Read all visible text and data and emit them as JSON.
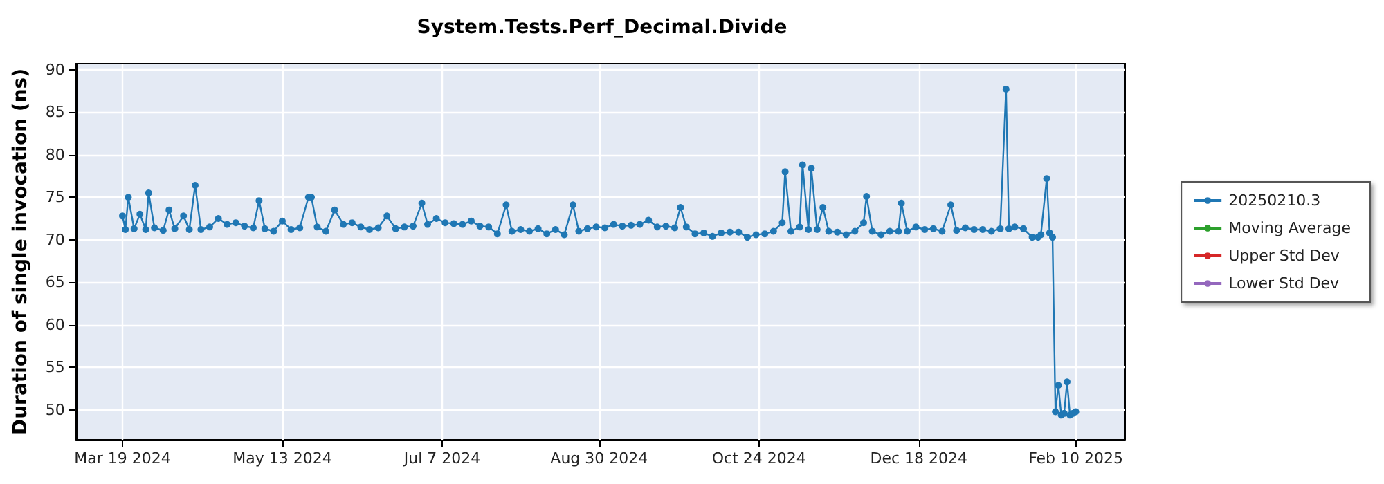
{
  "chart_data": {
    "type": "line",
    "title": "System.Tests.Perf_Decimal.Divide",
    "ylabel": "Duration of single invocation (ns)",
    "x": [
      "2024-03-19",
      "2024-03-20",
      "2024-03-21",
      "2024-03-23",
      "2024-03-25",
      "2024-03-27",
      "2024-03-28",
      "2024-03-30",
      "2024-04-02",
      "2024-04-04",
      "2024-04-06",
      "2024-04-09",
      "2024-04-11",
      "2024-04-13",
      "2024-04-15",
      "2024-04-18",
      "2024-04-21",
      "2024-04-24",
      "2024-04-27",
      "2024-04-30",
      "2024-05-03",
      "2024-05-05",
      "2024-05-07",
      "2024-05-10",
      "2024-05-13",
      "2024-05-16",
      "2024-05-19",
      "2024-05-22",
      "2024-05-23",
      "2024-05-25",
      "2024-05-28",
      "2024-05-31",
      "2024-06-03",
      "2024-06-06",
      "2024-06-09",
      "2024-06-12",
      "2024-06-15",
      "2024-06-18",
      "2024-06-21",
      "2024-06-24",
      "2024-06-27",
      "2024-06-30",
      "2024-07-02",
      "2024-07-05",
      "2024-07-08",
      "2024-07-11",
      "2024-07-14",
      "2024-07-17",
      "2024-07-20",
      "2024-07-23",
      "2024-07-26",
      "2024-07-29",
      "2024-07-31",
      "2024-08-03",
      "2024-08-06",
      "2024-08-09",
      "2024-08-12",
      "2024-08-15",
      "2024-08-18",
      "2024-08-21",
      "2024-08-23",
      "2024-08-26",
      "2024-08-29",
      "2024-09-01",
      "2024-09-04",
      "2024-09-07",
      "2024-09-10",
      "2024-09-13",
      "2024-09-16",
      "2024-09-19",
      "2024-09-22",
      "2024-09-25",
      "2024-09-27",
      "2024-09-29",
      "2024-10-02",
      "2024-10-05",
      "2024-10-08",
      "2024-10-11",
      "2024-10-14",
      "2024-10-17",
      "2024-10-20",
      "2024-10-23",
      "2024-10-26",
      "2024-10-29",
      "2024-11-01",
      "2024-11-02",
      "2024-11-04",
      "2024-11-07",
      "2024-11-08",
      "2024-11-10",
      "2024-11-11",
      "2024-11-13",
      "2024-11-15",
      "2024-11-17",
      "2024-11-20",
      "2024-11-23",
      "2024-11-26",
      "2024-11-29",
      "2024-11-30",
      "2024-12-02",
      "2024-12-05",
      "2024-12-08",
      "2024-12-11",
      "2024-12-12",
      "2024-12-14",
      "2024-12-17",
      "2024-12-20",
      "2024-12-23",
      "2024-12-26",
      "2024-12-29",
      "2024-12-31",
      "2025-01-03",
      "2025-01-06",
      "2025-01-09",
      "2025-01-12",
      "2025-01-15",
      "2025-01-17",
      "2025-01-18",
      "2025-01-20",
      "2025-01-23",
      "2025-01-26",
      "2025-01-28",
      "2025-01-29",
      "2025-01-31",
      "2025-02-01",
      "2025-02-02",
      "2025-02-03",
      "2025-02-04",
      "2025-02-05",
      "2025-02-06",
      "2025-02-07",
      "2025-02-08",
      "2025-02-09",
      "2025-02-10"
    ],
    "series": [
      {
        "name": "20250210.3",
        "color": "#1f77b4",
        "values": [
          72.8,
          71.2,
          75.0,
          71.3,
          73.0,
          71.2,
          75.5,
          71.4,
          71.1,
          73.5,
          71.3,
          72.8,
          71.2,
          76.4,
          71.2,
          71.5,
          72.5,
          71.8,
          72.0,
          71.6,
          71.4,
          74.6,
          71.3,
          71.0,
          72.2,
          71.2,
          71.4,
          75.0,
          75.0,
          71.5,
          71.0,
          73.5,
          71.8,
          72.0,
          71.5,
          71.2,
          71.4,
          72.8,
          71.3,
          71.5,
          71.6,
          74.3,
          71.8,
          72.5,
          72.0,
          71.9,
          71.8,
          72.2,
          71.6,
          71.5,
          70.7,
          74.1,
          71.0,
          71.2,
          71.0,
          71.3,
          70.7,
          71.2,
          70.6,
          74.1,
          71.0,
          71.3,
          71.5,
          71.4,
          71.8,
          71.6,
          71.7,
          71.8,
          72.3,
          71.5,
          71.6,
          71.4,
          73.8,
          71.5,
          70.7,
          70.8,
          70.4,
          70.8,
          70.9,
          70.9,
          70.3,
          70.6,
          70.7,
          71.0,
          72.0,
          78.0,
          71.0,
          71.5,
          78.8,
          71.2,
          78.4,
          71.2,
          73.8,
          71.0,
          70.9,
          70.6,
          71.0,
          72.0,
          75.1,
          71.0,
          70.6,
          71.0,
          71.0,
          74.3,
          71.0,
          71.5,
          71.2,
          71.3,
          71.0,
          74.1,
          71.1,
          71.4,
          71.2,
          71.2,
          71.0,
          71.3,
          87.7,
          71.3,
          71.5,
          71.3,
          70.3,
          70.3,
          70.6,
          77.2,
          70.8,
          70.3,
          49.8,
          52.9,
          49.4,
          49.6,
          53.3,
          49.4,
          49.6,
          49.8
        ]
      },
      {
        "name": "Moving Average",
        "color": "#2ca02c",
        "values": [
          null,
          null,
          null,
          null,
          null,
          null,
          null,
          null,
          null,
          null,
          null,
          null,
          null,
          null,
          null,
          null,
          null,
          null,
          null,
          null,
          null,
          null,
          null,
          null,
          null,
          null,
          null,
          null,
          null,
          null,
          null,
          null,
          null,
          null,
          null,
          null,
          null,
          null,
          null,
          null,
          null,
          null,
          null,
          null,
          null,
          null,
          null,
          null,
          null,
          null,
          null,
          null,
          null,
          null,
          null,
          null,
          null,
          null,
          null,
          null,
          null,
          null,
          null,
          null,
          null,
          null,
          null,
          null,
          null,
          null,
          null,
          null,
          null,
          null,
          null,
          null,
          null,
          null,
          null,
          null,
          null,
          null,
          null,
          null,
          null,
          null,
          null,
          null,
          null,
          null,
          null,
          null,
          null,
          null,
          null,
          null,
          null,
          null,
          null,
          null,
          null,
          null,
          null,
          null,
          null,
          null,
          null,
          null,
          null,
          null,
          null,
          null,
          null,
          null,
          null,
          null,
          null,
          null,
          null,
          null,
          null,
          null,
          null,
          null,
          null,
          null,
          null,
          null,
          null,
          null,
          null,
          null,
          null,
          null
        ]
      },
      {
        "name": "Upper Std Dev",
        "color": "#d62728",
        "values": [
          null,
          null,
          null,
          null,
          null,
          null,
          null,
          null,
          null,
          null,
          null,
          null,
          null,
          null,
          null,
          null,
          null,
          null,
          null,
          null,
          null,
          null,
          null,
          null,
          null,
          null,
          null,
          null,
          null,
          null,
          null,
          null,
          null,
          null,
          null,
          null,
          null,
          null,
          null,
          null,
          null,
          null,
          null,
          null,
          null,
          null,
          null,
          null,
          null,
          null,
          null,
          null,
          null,
          null,
          null,
          null,
          null,
          null,
          null,
          null,
          null,
          null,
          null,
          null,
          null,
          null,
          null,
          null,
          null,
          null,
          null,
          null,
          null,
          null,
          null,
          null,
          null,
          null,
          null,
          null,
          null,
          null,
          null,
          null,
          null,
          null,
          null,
          null,
          null,
          null,
          null,
          null,
          null,
          null,
          null,
          null,
          null,
          null,
          null,
          null,
          null,
          null,
          null,
          null,
          null,
          null,
          null,
          null,
          null,
          null,
          null,
          null,
          null,
          null,
          null,
          null,
          null,
          null,
          null,
          null,
          null,
          null,
          null,
          null,
          null,
          null,
          null,
          null,
          null,
          null,
          null,
          null,
          null,
          null
        ]
      },
      {
        "name": "Lower Std Dev",
        "color": "#9467bd",
        "values": [
          null,
          null,
          null,
          null,
          null,
          null,
          null,
          null,
          null,
          null,
          null,
          null,
          null,
          null,
          null,
          null,
          null,
          null,
          null,
          null,
          null,
          null,
          null,
          null,
          null,
          null,
          null,
          null,
          null,
          null,
          null,
          null,
          null,
          null,
          null,
          null,
          null,
          null,
          null,
          null,
          null,
          null,
          null,
          null,
          null,
          null,
          null,
          null,
          null,
          null,
          null,
          null,
          null,
          null,
          null,
          null,
          null,
          null,
          null,
          null,
          null,
          null,
          null,
          null,
          null,
          null,
          null,
          null,
          null,
          null,
          null,
          null,
          null,
          null,
          null,
          null,
          null,
          null,
          null,
          null,
          null,
          null,
          null,
          null,
          null,
          null,
          null,
          null,
          null,
          null,
          null,
          null,
          null,
          null,
          null,
          null,
          null,
          null,
          null,
          null,
          null,
          null,
          null,
          null,
          null,
          null,
          null,
          null,
          null,
          null,
          null,
          null,
          null,
          null,
          null,
          null,
          null,
          null,
          null,
          null,
          null,
          null,
          null,
          null,
          null,
          null,
          null,
          null,
          null,
          null,
          null,
          null,
          null,
          null
        ]
      }
    ],
    "xlim": [
      "2024-03-03",
      "2025-02-27"
    ],
    "xticks": [
      {
        "value": "2024-03-19",
        "label": "Mar 19 2024"
      },
      {
        "value": "2024-05-13",
        "label": "May 13 2024"
      },
      {
        "value": "2024-07-07",
        "label": "Jul 7 2024"
      },
      {
        "value": "2024-08-30",
        "label": "Aug 30 2024"
      },
      {
        "value": "2024-10-24",
        "label": "Oct 24 2024"
      },
      {
        "value": "2024-12-18",
        "label": "Dec 18 2024"
      },
      {
        "value": "2025-02-10",
        "label": "Feb 10 2025"
      }
    ],
    "ylim": [
      46.5,
      90.7
    ],
    "yticks": [
      50,
      55,
      60,
      65,
      70,
      75,
      80,
      85,
      90
    ],
    "grid": true,
    "legend": "right",
    "marker": "circle"
  }
}
